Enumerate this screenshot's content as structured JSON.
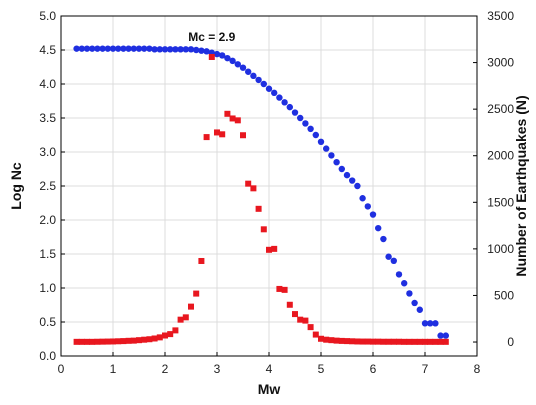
{
  "chart_data": {
    "type": "scatter",
    "title": "",
    "xlabel": "Mw",
    "ylabel_left": "Log Nc",
    "ylabel_right": "Number of Earthquakes (N)",
    "xlim": [
      0,
      8
    ],
    "ylim_left": [
      0,
      5
    ],
    "ylim_right": [
      -150,
      3500
    ],
    "x_ticks": [
      "0",
      "1",
      "2",
      "3",
      "4",
      "5",
      "6",
      "7",
      "8"
    ],
    "y_left_ticks": [
      "0.0",
      "0.5",
      "1.0",
      "1.5",
      "2.0",
      "2.5",
      "3.0",
      "3.5",
      "4.0",
      "4.5",
      "5.0"
    ],
    "y_right_ticks": [
      "0",
      "500",
      "1000",
      "1500",
      "2000",
      "2500",
      "3000",
      "3500"
    ],
    "grid": true,
    "annotation": {
      "text": "Mc = 2.9",
      "x": 2.9,
      "y": 4.6
    },
    "series": [
      {
        "axis": "left",
        "marker": "circle",
        "color": "#1f2fe0",
        "points": [
          [
            0.3,
            4.52
          ],
          [
            0.4,
            4.52
          ],
          [
            0.5,
            4.52
          ],
          [
            0.6,
            4.52
          ],
          [
            0.7,
            4.52
          ],
          [
            0.8,
            4.52
          ],
          [
            0.9,
            4.52
          ],
          [
            1.0,
            4.52
          ],
          [
            1.1,
            4.52
          ],
          [
            1.2,
            4.52
          ],
          [
            1.3,
            4.52
          ],
          [
            1.4,
            4.52
          ],
          [
            1.5,
            4.52
          ],
          [
            1.6,
            4.52
          ],
          [
            1.7,
            4.52
          ],
          [
            1.8,
            4.51
          ],
          [
            1.9,
            4.51
          ],
          [
            2.0,
            4.51
          ],
          [
            2.1,
            4.51
          ],
          [
            2.2,
            4.51
          ],
          [
            2.3,
            4.51
          ],
          [
            2.4,
            4.51
          ],
          [
            2.5,
            4.51
          ],
          [
            2.6,
            4.5
          ],
          [
            2.7,
            4.49
          ],
          [
            2.8,
            4.48
          ],
          [
            2.9,
            4.46
          ],
          [
            3.0,
            4.44
          ],
          [
            3.1,
            4.42
          ],
          [
            3.2,
            4.38
          ],
          [
            3.3,
            4.34
          ],
          [
            3.4,
            4.29
          ],
          [
            3.5,
            4.24
          ],
          [
            3.6,
            4.18
          ],
          [
            3.7,
            4.12
          ],
          [
            3.8,
            4.06
          ],
          [
            3.9,
            4.0
          ],
          [
            4.0,
            3.93
          ],
          [
            4.1,
            3.87
          ],
          [
            4.2,
            3.8
          ],
          [
            4.3,
            3.73
          ],
          [
            4.4,
            3.66
          ],
          [
            4.5,
            3.58
          ],
          [
            4.6,
            3.5
          ],
          [
            4.7,
            3.42
          ],
          [
            4.8,
            3.34
          ],
          [
            4.9,
            3.25
          ],
          [
            5.0,
            3.15
          ],
          [
            5.1,
            3.05
          ],
          [
            5.2,
            2.95
          ],
          [
            5.3,
            2.85
          ],
          [
            5.4,
            2.75
          ],
          [
            5.5,
            2.66
          ],
          [
            5.6,
            2.58
          ],
          [
            5.7,
            2.5
          ],
          [
            5.8,
            2.32
          ],
          [
            5.9,
            2.2
          ],
          [
            6.0,
            2.08
          ],
          [
            6.1,
            1.88
          ],
          [
            6.2,
            1.72
          ],
          [
            6.3,
            1.46
          ],
          [
            6.4,
            1.4
          ],
          [
            6.5,
            1.2
          ],
          [
            6.6,
            1.07
          ],
          [
            6.7,
            0.92
          ],
          [
            6.8,
            0.78
          ],
          [
            6.9,
            0.68
          ],
          [
            7.0,
            0.48
          ],
          [
            7.1,
            0.48
          ],
          [
            7.2,
            0.48
          ],
          [
            7.3,
            0.3
          ],
          [
            7.4,
            0.3
          ]
        ]
      },
      {
        "axis": "right",
        "marker": "square",
        "color": "#e8171f",
        "points": [
          [
            0.3,
            2
          ],
          [
            0.4,
            2
          ],
          [
            0.5,
            2
          ],
          [
            0.6,
            2
          ],
          [
            0.7,
            3
          ],
          [
            0.8,
            4
          ],
          [
            0.9,
            5
          ],
          [
            1.0,
            6
          ],
          [
            1.1,
            8
          ],
          [
            1.2,
            10
          ],
          [
            1.3,
            13
          ],
          [
            1.4,
            15
          ],
          [
            1.5,
            20
          ],
          [
            1.6,
            25
          ],
          [
            1.7,
            30
          ],
          [
            1.8,
            38
          ],
          [
            1.9,
            50
          ],
          [
            2.0,
            70
          ],
          [
            2.1,
            85
          ],
          [
            2.2,
            125
          ],
          [
            2.3,
            240
          ],
          [
            2.4,
            265
          ],
          [
            2.5,
            380
          ],
          [
            2.6,
            520
          ],
          [
            2.7,
            870
          ],
          [
            2.8,
            2200
          ],
          [
            2.9,
            3060
          ],
          [
            3.0,
            2250
          ],
          [
            3.1,
            2230
          ],
          [
            3.2,
            2450
          ],
          [
            3.3,
            2400
          ],
          [
            3.4,
            2380
          ],
          [
            3.5,
            2220
          ],
          [
            3.6,
            1700
          ],
          [
            3.7,
            1650
          ],
          [
            3.8,
            1430
          ],
          [
            3.9,
            1210
          ],
          [
            4.0,
            990
          ],
          [
            4.1,
            1000
          ],
          [
            4.2,
            570
          ],
          [
            4.3,
            560
          ],
          [
            4.4,
            400
          ],
          [
            4.5,
            300
          ],
          [
            4.6,
            240
          ],
          [
            4.7,
            230
          ],
          [
            4.8,
            160
          ],
          [
            4.9,
            80
          ],
          [
            5.0,
            35
          ],
          [
            5.1,
            25
          ],
          [
            5.2,
            20
          ],
          [
            5.3,
            15
          ],
          [
            5.4,
            12
          ],
          [
            5.5,
            10
          ],
          [
            5.6,
            8
          ],
          [
            5.7,
            6
          ],
          [
            5.8,
            5
          ],
          [
            5.9,
            5
          ],
          [
            6.0,
            4
          ],
          [
            6.1,
            4
          ],
          [
            6.2,
            3
          ],
          [
            6.3,
            3
          ],
          [
            6.4,
            3
          ],
          [
            6.5,
            3
          ],
          [
            6.6,
            2
          ],
          [
            6.7,
            2
          ],
          [
            6.8,
            2
          ],
          [
            6.9,
            2
          ],
          [
            7.0,
            2
          ],
          [
            7.1,
            2
          ],
          [
            7.2,
            2
          ],
          [
            7.3,
            2
          ],
          [
            7.4,
            2
          ]
        ]
      }
    ]
  }
}
